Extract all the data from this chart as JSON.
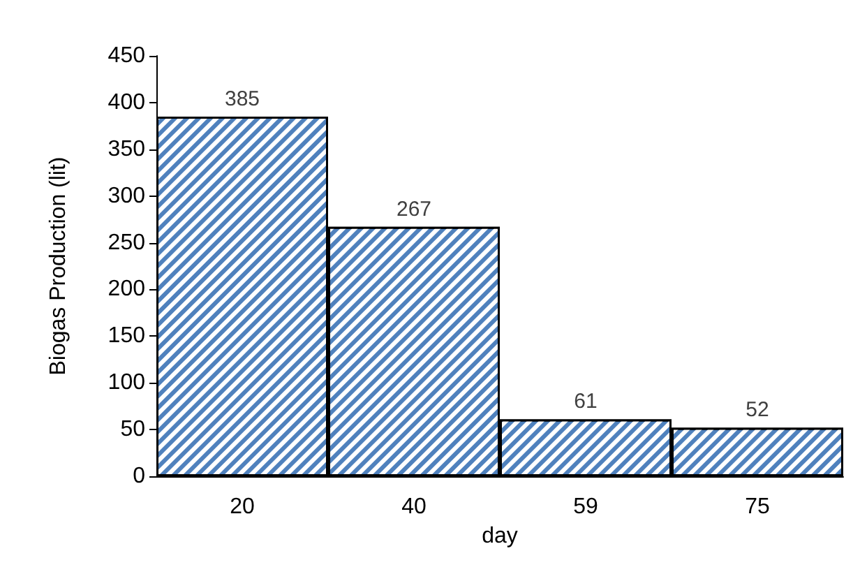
{
  "chart_data": {
    "type": "bar",
    "categories": [
      "20",
      "40",
      "59",
      "75"
    ],
    "values": [
      385,
      267,
      61,
      52
    ],
    "color": "#4f81bd",
    "xlabel": "day",
    "ylabel": "Biogas Production (lit)",
    "ylim": [
      0,
      450
    ],
    "yticks": [
      0,
      50,
      100,
      150,
      200,
      250,
      300,
      350,
      400,
      450
    ],
    "data_labels": true,
    "grid": false
  }
}
